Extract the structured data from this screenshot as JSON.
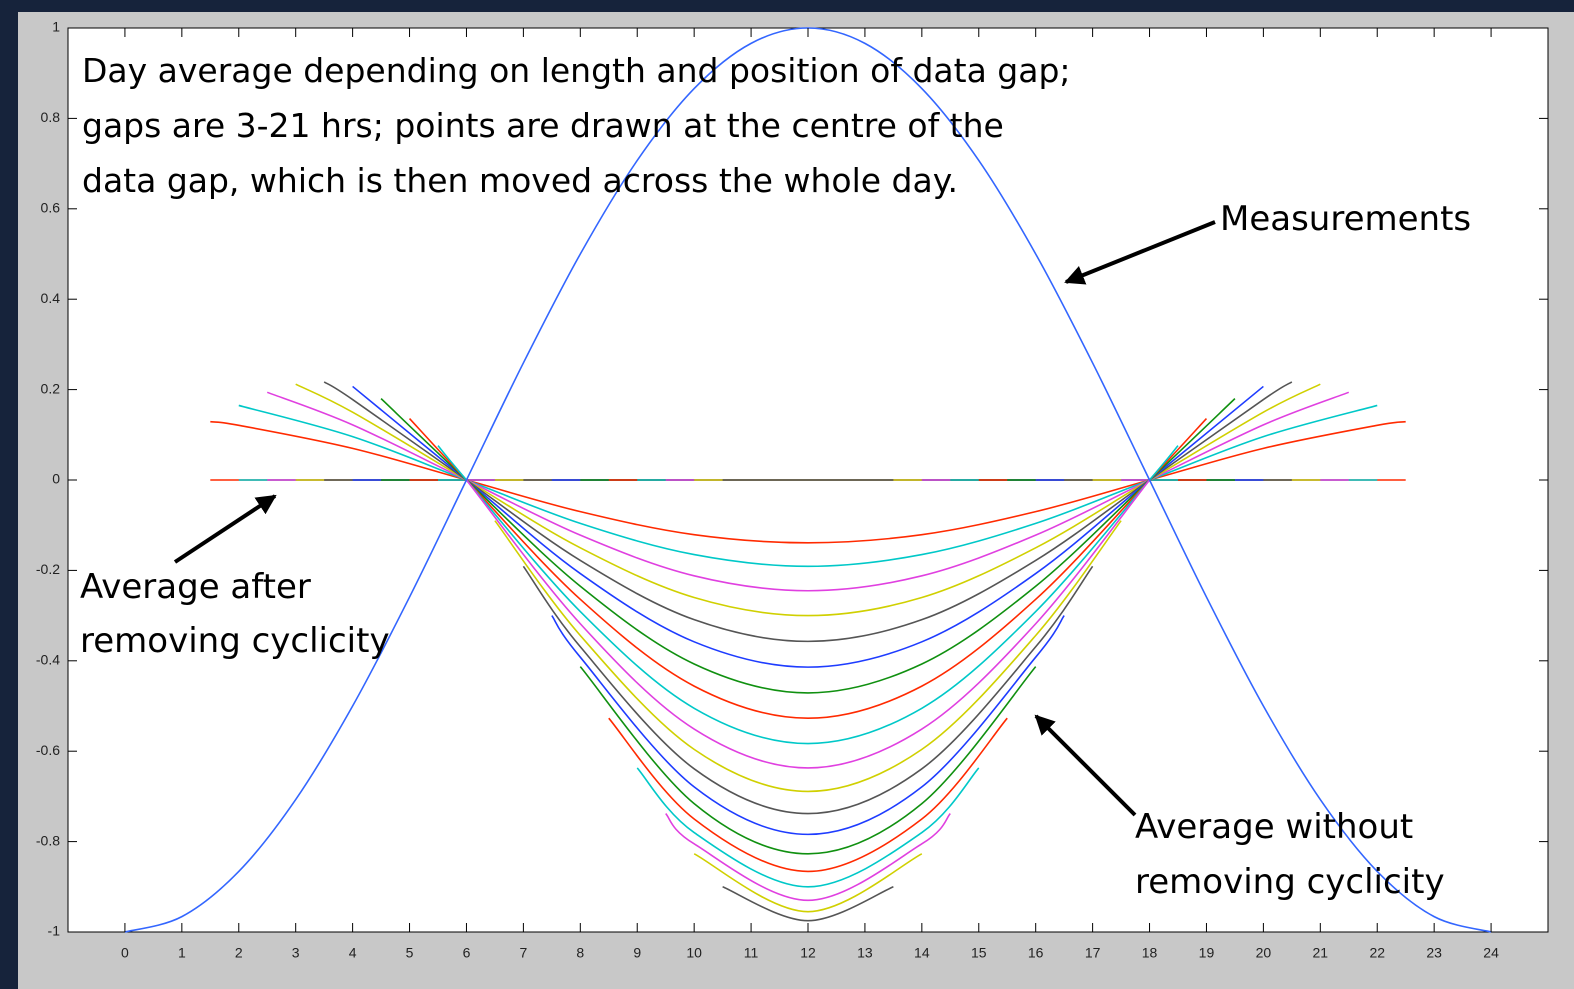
{
  "chart_data": {
    "type": "line",
    "annotations": [
      "Day average depending on length and position of data gap;",
      "gaps are 3-21 hrs; points are drawn at the centre of the",
      "data gap, which is then moved across the whole day.",
      "Measurements",
      "Average after",
      "removing cyclicity",
      "Average without",
      "removing cyclicity"
    ],
    "xlim": [
      -1,
      25
    ],
    "xticks": [
      0,
      1,
      2,
      3,
      4,
      5,
      6,
      7,
      8,
      9,
      10,
      11,
      12,
      13,
      14,
      15,
      16,
      17,
      18,
      19,
      20,
      21,
      22,
      23,
      24
    ],
    "ylim": [
      -1,
      1
    ],
    "yticks": [
      -1,
      -0.8,
      -0.6,
      -0.4,
      -0.2,
      0,
      0.2,
      0.4,
      0.6,
      0.8,
      1
    ],
    "series": [
      {
        "color": "#ff2a00",
        "x": [
          1.5,
          22.5
        ],
        "values": [
          0,
          0
        ]
      },
      {
        "color": "#00c8c8",
        "x": [
          2,
          22
        ],
        "values": [
          0,
          0
        ]
      },
      {
        "color": "#e040e0",
        "x": [
          2.5,
          21.5
        ],
        "values": [
          0,
          0
        ]
      },
      {
        "color": "#d0d000",
        "x": [
          3,
          21
        ],
        "values": [
          0,
          0
        ]
      },
      {
        "color": "#555555",
        "x": [
          3.5,
          20.5
        ],
        "values": [
          0,
          0
        ]
      },
      {
        "color": "#1e3cff",
        "x": [
          4,
          20
        ],
        "values": [
          0,
          0
        ]
      },
      {
        "color": "#109010",
        "x": [
          4.5,
          19.5
        ],
        "values": [
          0,
          0
        ]
      },
      {
        "color": "#ff2a00",
        "x": [
          5,
          19
        ],
        "values": [
          0,
          0
        ]
      },
      {
        "color": "#00c8c8",
        "x": [
          5.5,
          18.5
        ],
        "values": [
          0,
          0
        ]
      },
      {
        "color": "#e040e0",
        "x": [
          6,
          18
        ],
        "values": [
          0,
          0
        ]
      },
      {
        "color": "#d0d000",
        "x": [
          6.5,
          17.5
        ],
        "values": [
          0,
          0
        ]
      },
      {
        "color": "#555555",
        "x": [
          7,
          17
        ],
        "values": [
          0,
          0
        ]
      },
      {
        "color": "#1e3cff",
        "x": [
          7.5,
          16.5
        ],
        "values": [
          0,
          0
        ]
      },
      {
        "color": "#109010",
        "x": [
          8,
          16
        ],
        "values": [
          0,
          0
        ]
      },
      {
        "color": "#ff2a00",
        "x": [
          8.5,
          15.5
        ],
        "values": [
          0,
          0
        ]
      },
      {
        "color": "#00c8c8",
        "x": [
          9,
          15
        ],
        "values": [
          0,
          0
        ]
      },
      {
        "color": "#e040e0",
        "x": [
          9.5,
          14.5
        ],
        "values": [
          0,
          0
        ]
      },
      {
        "color": "#d0d000",
        "x": [
          10,
          14
        ],
        "values": [
          0,
          0
        ]
      },
      {
        "color": "#555555",
        "x": [
          10.5,
          13.5
        ],
        "values": [
          0,
          0
        ]
      },
      {
        "color": "#ff2a00",
        "x": [
          1.5,
          2,
          4,
          6,
          8,
          10,
          12,
          14,
          16,
          18,
          20,
          22,
          22.5
        ],
        "values": [
          0.129,
          0.121,
          0.07,
          0,
          -0.07,
          -0.121,
          -0.139,
          -0.121,
          -0.07,
          0,
          0.07,
          0.121,
          0.129
        ]
      },
      {
        "color": "#00c8c8",
        "x": [
          2,
          4,
          6,
          8,
          10,
          12,
          14,
          16,
          18,
          20,
          22
        ],
        "values": [
          0.165,
          0.096,
          0,
          -0.096,
          -0.165,
          -0.191,
          -0.165,
          -0.096,
          0,
          0.096,
          0.165
        ]
      },
      {
        "color": "#e040e0",
        "x": [
          2.5,
          4,
          6,
          8,
          10,
          12,
          14,
          16,
          18,
          20,
          21.5
        ],
        "values": [
          0.194,
          0.122,
          0,
          -0.122,
          -0.212,
          -0.245,
          -0.212,
          -0.122,
          0,
          0.122,
          0.194
        ]
      },
      {
        "color": "#d0d000",
        "x": [
          3,
          4,
          6,
          8,
          10,
          12,
          14,
          16,
          18,
          20,
          21
        ],
        "values": [
          0.212,
          0.15,
          0,
          -0.15,
          -0.26,
          -0.3,
          -0.26,
          -0.15,
          0,
          0.15,
          0.212
        ]
      },
      {
        "color": "#555555",
        "x": [
          3.5,
          4,
          6,
          8,
          10,
          12,
          14,
          16,
          18,
          20,
          20.5
        ],
        "values": [
          0.217,
          0.178,
          0,
          -0.178,
          -0.309,
          -0.357,
          -0.309,
          -0.178,
          0,
          0.178,
          0.217
        ]
      },
      {
        "color": "#1e3cff",
        "x": [
          4,
          6,
          8,
          10,
          12,
          14,
          16,
          18,
          20
        ],
        "values": [
          0.207,
          0,
          -0.207,
          -0.358,
          -0.414,
          -0.358,
          -0.207,
          0,
          0.207
        ]
      },
      {
        "color": "#109010",
        "x": [
          4.5,
          6,
          8,
          10,
          12,
          14,
          16,
          18,
          19.5
        ],
        "values": [
          0.18,
          0,
          -0.235,
          -0.407,
          -0.471,
          -0.407,
          -0.235,
          0,
          0.18
        ]
      },
      {
        "color": "#ff2a00",
        "x": [
          5,
          6,
          8,
          10,
          12,
          14,
          16,
          18,
          19
        ],
        "values": [
          0.136,
          0,
          -0.264,
          -0.456,
          -0.527,
          -0.456,
          -0.264,
          0,
          0.136
        ]
      },
      {
        "color": "#00c8c8",
        "x": [
          5.5,
          6,
          8,
          10,
          12,
          14,
          16,
          18,
          18.5
        ],
        "values": [
          0.076,
          0,
          -0.291,
          -0.505,
          -0.583,
          -0.505,
          -0.291,
          0,
          0.076
        ]
      },
      {
        "color": "#e040e0",
        "x": [
          6,
          8,
          10,
          12,
          14,
          16,
          18
        ],
        "values": [
          0,
          -0.318,
          -0.551,
          -0.637,
          -0.551,
          -0.318,
          0
        ]
      },
      {
        "color": "#d0d000",
        "x": [
          6.5,
          8,
          10,
          12,
          14,
          16,
          17.5
        ],
        "values": [
          -0.09,
          -0.344,
          -0.596,
          -0.689,
          -0.596,
          -0.344,
          -0.09
        ]
      },
      {
        "color": "#555555",
        "x": [
          7,
          8,
          10,
          12,
          14,
          16,
          17
        ],
        "values": [
          -0.191,
          -0.369,
          -0.639,
          -0.738,
          -0.639,
          -0.369,
          -0.191
        ]
      },
      {
        "color": "#1e3cff",
        "x": [
          7.5,
          8,
          10,
          12,
          14,
          16,
          16.5
        ],
        "values": [
          -0.3,
          -0.392,
          -0.679,
          -0.784,
          -0.679,
          -0.392,
          -0.3
        ]
      },
      {
        "color": "#109010",
        "x": [
          8,
          10,
          12,
          14,
          16
        ],
        "values": [
          -0.413,
          -0.716,
          -0.827,
          -0.716,
          -0.413
        ]
      },
      {
        "color": "#ff2a00",
        "x": [
          8.5,
          10,
          12,
          14,
          15.5
        ],
        "values": [
          -0.527,
          -0.75,
          -0.866,
          -0.75,
          -0.527
        ]
      },
      {
        "color": "#00c8c8",
        "x": [
          9,
          10,
          12,
          14,
          15
        ],
        "values": [
          -0.637,
          -0.78,
          -0.9,
          -0.78,
          -0.637
        ]
      },
      {
        "color": "#e040e0",
        "x": [
          9.5,
          10,
          12,
          14,
          14.5
        ],
        "values": [
          -0.738,
          -0.805,
          -0.93,
          -0.805,
          -0.738
        ]
      },
      {
        "color": "#d0d000",
        "x": [
          10,
          12,
          14
        ],
        "values": [
          -0.827,
          -0.955,
          -0.827
        ]
      },
      {
        "color": "#555555",
        "x": [
          10.5,
          12,
          13.5
        ],
        "values": [
          -0.9,
          -0.975,
          -0.9
        ]
      },
      {
        "color": "#3366ff",
        "x": [
          0,
          1,
          2,
          3,
          4,
          5,
          6,
          7,
          8,
          9,
          10,
          11,
          12,
          13,
          14,
          15,
          16,
          17,
          18,
          19,
          20,
          21,
          22,
          23,
          24
        ],
        "values": [
          -1,
          -0.966,
          -0.866,
          -0.707,
          -0.5,
          -0.259,
          0,
          0.259,
          0.5,
          0.707,
          0.866,
          0.966,
          1,
          0.966,
          0.866,
          0.707,
          0.5,
          0.259,
          0,
          -0.259,
          -0.5,
          -0.707,
          -0.866,
          -0.966,
          -1
        ]
      }
    ]
  }
}
